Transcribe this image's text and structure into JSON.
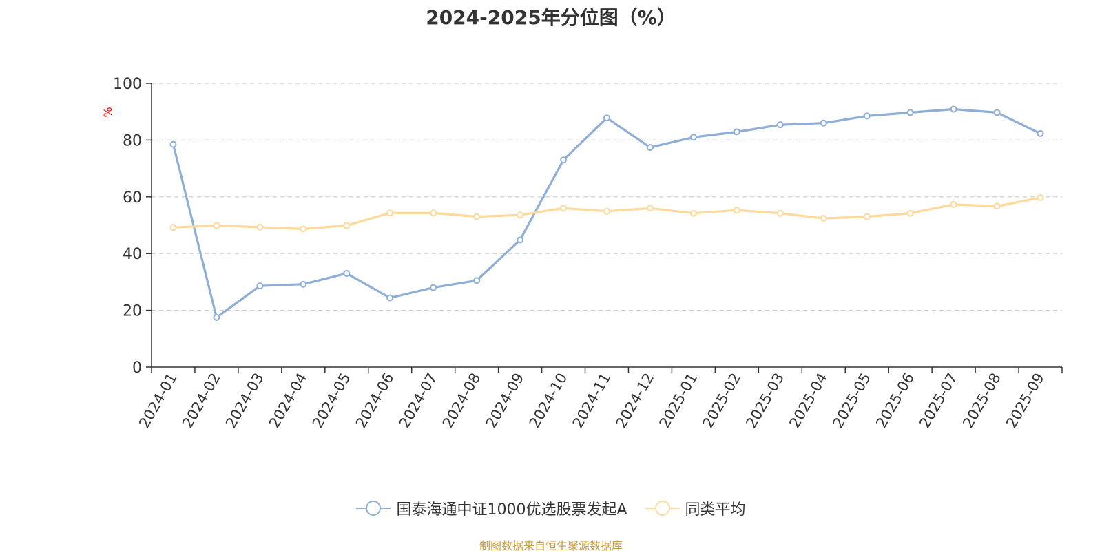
{
  "chart_data": {
    "type": "line",
    "title": "2024-2025年分位图（%）",
    "ylabel": "%",
    "xlabel": "",
    "ylim": [
      0,
      100
    ],
    "yticks": [
      0,
      20,
      40,
      60,
      80,
      100
    ],
    "grid": true,
    "legend_position": "bottom",
    "categories": [
      "2024-01",
      "2024-02",
      "2024-03",
      "2024-04",
      "2024-05",
      "2024-06",
      "2024-07",
      "2024-08",
      "2024-09",
      "2024-10",
      "2024-11",
      "2024-12",
      "2025-01",
      "2025-02",
      "2025-03",
      "2025-04",
      "2025-05",
      "2025-06",
      "2025-07",
      "2025-08",
      "2025-09"
    ],
    "series": [
      {
        "name": "国泰海通中证1000优选股票发起A",
        "color": "#8eaed8",
        "values": [
          78.5,
          17.5,
          28.6,
          29.2,
          33.0,
          24.4,
          28.0,
          30.5,
          44.8,
          73.0,
          87.8,
          77.4,
          81.0,
          82.9,
          85.4,
          86.0,
          88.5,
          89.7,
          90.9,
          89.7,
          82.3
        ]
      },
      {
        "name": "同类平均",
        "color": "#fdd99c",
        "values": [
          49.2,
          49.9,
          49.3,
          48.7,
          49.9,
          54.3,
          54.3,
          53.0,
          53.6,
          56.0,
          54.9,
          56.0,
          54.2,
          55.3,
          54.2,
          52.4,
          53.0,
          54.2,
          57.3,
          56.7,
          59.7
        ]
      }
    ],
    "source": "制图数据来自恒生聚源数据库",
    "axis_label_color": "#ff0000"
  }
}
